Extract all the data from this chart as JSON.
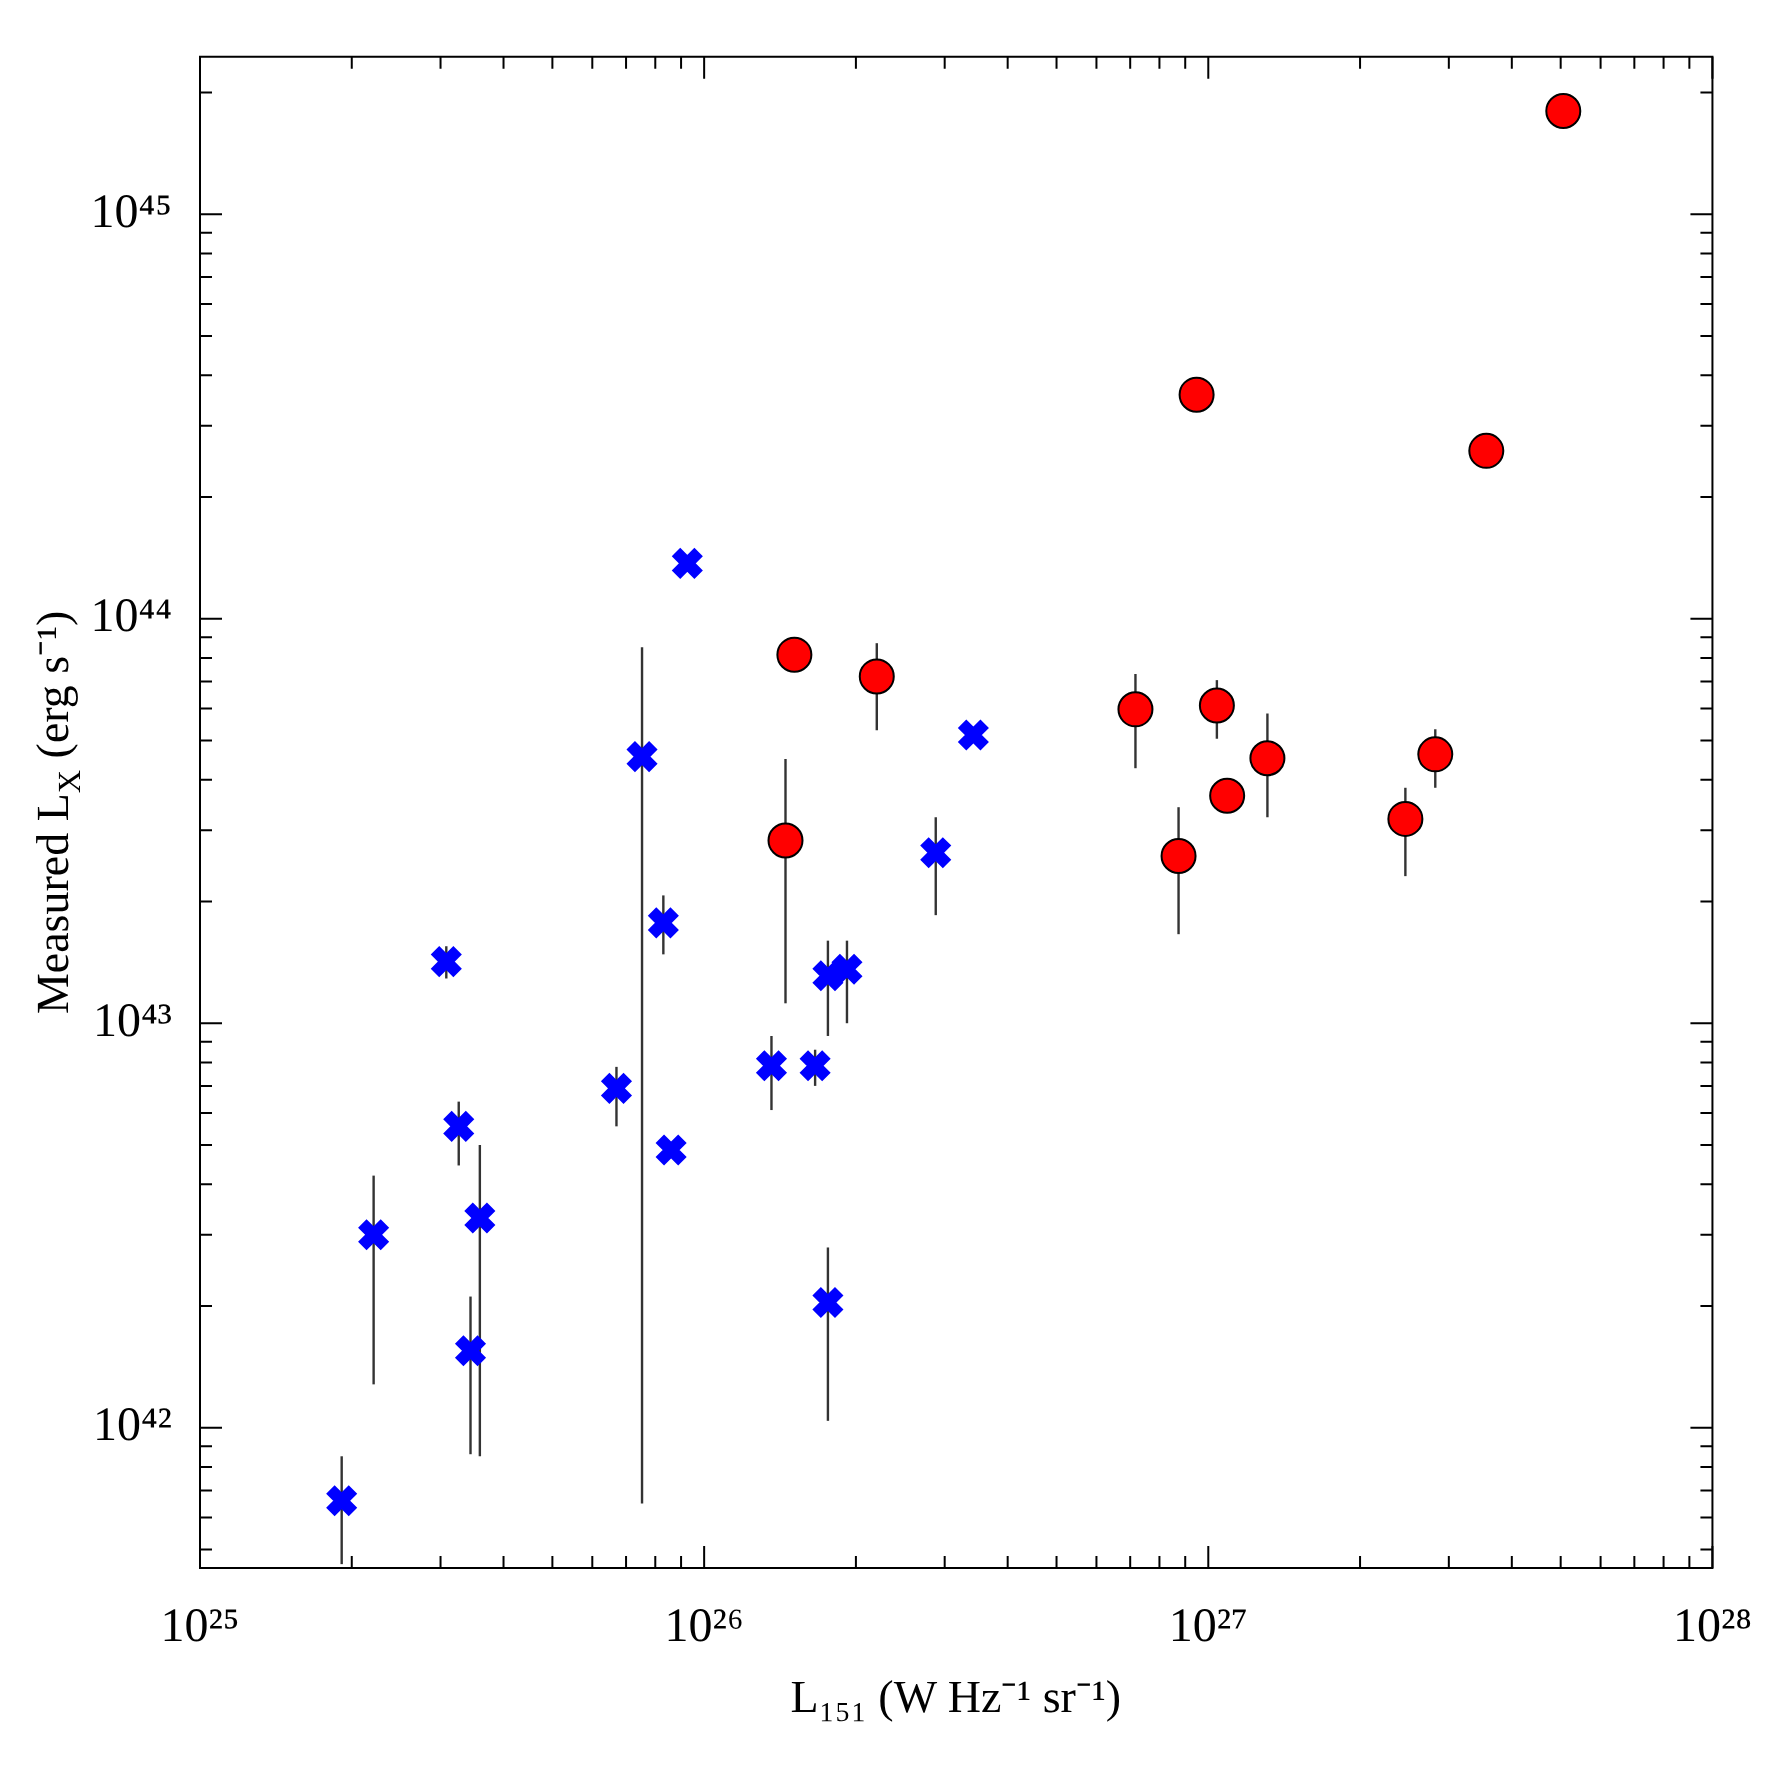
{
  "chart_data": {
    "type": "scatter",
    "xlabel": "L₁₅₁ (W Hz⁻¹ sr⁻¹)",
    "ylabel": "Measured L$_{X}$ (erg s⁻¹)",
    "log": "xy",
    "grid": false,
    "legend": false,
    "xlim": [
      1e+25,
      1e+28
    ],
    "ylim": [
      4.5e+41,
      2.45e+45
    ],
    "xticks": [
      {
        "value": 1e+25,
        "label": "10²⁵"
      },
      {
        "value": 2e+25,
        "label": null
      },
      {
        "value": 3e+25,
        "label": null
      },
      {
        "value": 4e+25,
        "label": null
      },
      {
        "value": 5e+25,
        "label": null
      },
      {
        "value": 6e+25,
        "label": null
      },
      {
        "value": 7e+25,
        "label": null
      },
      {
        "value": 8e+25,
        "label": null
      },
      {
        "value": 9e+25,
        "label": null
      },
      {
        "value": 1e+26,
        "label": "10²⁶"
      },
      {
        "value": 2e+26,
        "label": null
      },
      {
        "value": 3e+26,
        "label": null
      },
      {
        "value": 4e+26,
        "label": null
      },
      {
        "value": 5e+26,
        "label": null
      },
      {
        "value": 6e+26,
        "label": null
      },
      {
        "value": 7e+26,
        "label": null
      },
      {
        "value": 8e+26,
        "label": null
      },
      {
        "value": 9e+26,
        "label": null
      },
      {
        "value": 1e+27,
        "label": "10²⁷"
      },
      {
        "value": 2e+27,
        "label": null
      },
      {
        "value": 3e+27,
        "label": null
      },
      {
        "value": 4e+27,
        "label": null
      },
      {
        "value": 5e+27,
        "label": null
      },
      {
        "value": 6e+27,
        "label": null
      },
      {
        "value": 7e+27,
        "label": null
      },
      {
        "value": 8e+27,
        "label": null
      },
      {
        "value": 9e+27,
        "label": null
      },
      {
        "value": 1e+28,
        "label": "10²⁸"
      }
    ],
    "yticks": [
      {
        "value": 5e+41,
        "label": null
      },
      {
        "value": 6e+41,
        "label": null
      },
      {
        "value": 7e+41,
        "label": null
      },
      {
        "value": 8e+41,
        "label": null
      },
      {
        "value": 9e+41,
        "label": null
      },
      {
        "value": 1e+42,
        "label": "10⁴²"
      },
      {
        "value": 2e+42,
        "label": null
      },
      {
        "value": 3e+42,
        "label": null
      },
      {
        "value": 4e+42,
        "label": null
      },
      {
        "value": 5e+42,
        "label": null
      },
      {
        "value": 6e+42,
        "label": null
      },
      {
        "value": 7e+42,
        "label": null
      },
      {
        "value": 8e+42,
        "label": null
      },
      {
        "value": 9e+42,
        "label": null
      },
      {
        "value": 1e+43,
        "label": "10⁴³"
      },
      {
        "value": 2e+43,
        "label": null
      },
      {
        "value": 3e+43,
        "label": null
      },
      {
        "value": 4e+43,
        "label": null
      },
      {
        "value": 5e+43,
        "label": null
      },
      {
        "value": 6e+43,
        "label": null
      },
      {
        "value": 7e+43,
        "label": null
      },
      {
        "value": 8e+43,
        "label": null
      },
      {
        "value": 9e+43,
        "label": null
      },
      {
        "value": 1e+44,
        "label": "10⁴⁴"
      },
      {
        "value": 2e+44,
        "label": null
      },
      {
        "value": 3e+44,
        "label": null
      },
      {
        "value": 4e+44,
        "label": null
      },
      {
        "value": 5e+44,
        "label": null
      },
      {
        "value": 6e+44,
        "label": null
      },
      {
        "value": 7e+44,
        "label": null
      },
      {
        "value": 8e+44,
        "label": null
      },
      {
        "value": 9e+44,
        "label": null
      },
      {
        "value": 1e+45,
        "label": "10⁴⁵"
      },
      {
        "value": 2e+45,
        "label": null
      }
    ],
    "series": [
      {
        "color": "#0000ff",
        "marker": "cross",
        "x": [
          1.91e+25,
          2.21e+25,
          3.08e+25,
          3.26e+25,
          3.44e+25,
          3.59e+25,
          6.7e+25,
          7.53e+25,
          8.3e+25,
          8.6e+25,
          9.26e+25,
          1.36e+26,
          1.66e+26,
          1.76e+26,
          1.92e+26,
          1.76e+26,
          2.88e+26,
          3.42e+26
        ],
        "values": [
          6.6e+41,
          3e+42,
          1.42e+43,
          5.56e+42,
          1.55e+42,
          3.3e+42,
          6.9e+42,
          4.56e+43,
          1.77e+43,
          4.86e+42,
          1.37e+44,
          7.85e+42,
          7.85e+42,
          1.31e+43,
          1.36e+43,
          2.04e+42,
          2.64e+43,
          5.16e+43
        ],
        "errors": [
          [
            4.6e+41,
            8.5e+41
          ],
          [
            1.28e+42,
            4.2e+42
          ],
          [
            1.29e+43,
            1.55e+43
          ],
          [
            4.45e+42,
            6.4e+42
          ],
          [
            8.6e+41,
            2.11e+42
          ],
          [
            8.5e+41,
            5e+42
          ],
          [
            5.56e+42,
            7.8e+42
          ],
          [
            6.5e+41,
            8.5e+43
          ],
          [
            1.48e+43,
            2.07e+43
          ],
          null,
          null,
          [
            6.1e+42,
            9.3e+42
          ],
          [
            7e+42,
            8.6e+42
          ],
          [
            9.3e+42,
            1.6e+43
          ],
          [
            1e+43,
            1.6e+43
          ],
          [
            1.04e+42,
            2.79e+42
          ],
          [
            1.85e+43,
            3.23e+43
          ],
          null
        ]
      },
      {
        "color": "#ff0000",
        "marker": "circle",
        "x": [
          1.51e+26,
          1.45e+26,
          2.2e+26,
          7.17e+26,
          8.73e+26,
          9.48e+26,
          1.04e+27,
          1.09e+27,
          1.31e+27,
          2.46e+27,
          2.82e+27,
          3.56e+27,
          5.06e+27
        ],
        "values": [
          8.15e+43,
          2.83e+43,
          7.2e+43,
          5.97e+43,
          2.59e+43,
          3.58e+44,
          6.1e+43,
          3.65e+43,
          4.52e+43,
          3.2e+43,
          4.62e+43,
          2.6e+44,
          1.8e+45
        ],
        "errors": [
          [
            7.6e+43,
            8.9e+43
          ],
          [
            1.12e+43,
            4.5e+43
          ],
          [
            5.3e+43,
            8.7e+43
          ],
          [
            4.27e+43,
            7.3e+43
          ],
          [
            1.66e+43,
            3.42e+43
          ],
          null,
          [
            5.05e+43,
            7.05e+43
          ],
          null,
          [
            3.23e+43,
            5.83e+43
          ],
          [
            2.31e+43,
            3.82e+43
          ],
          [
            3.82e+43,
            5.33e+43
          ],
          null,
          null
        ]
      }
    ]
  }
}
